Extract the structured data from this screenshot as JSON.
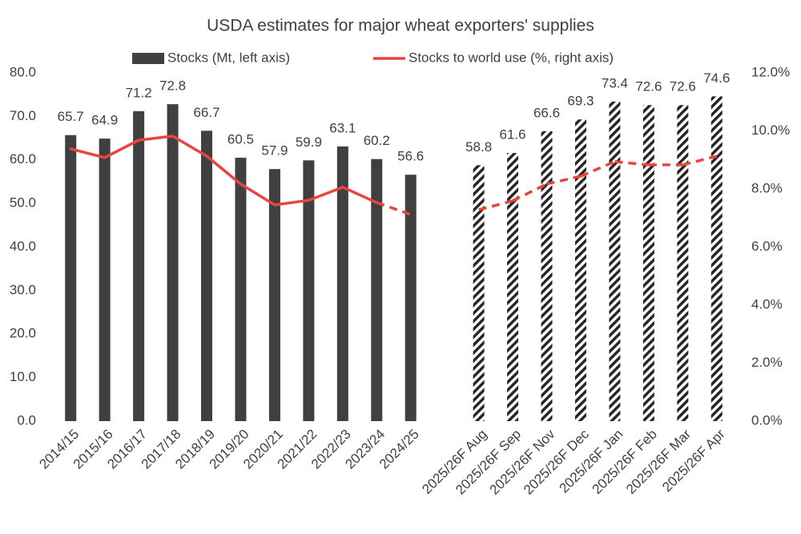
{
  "chart_data": {
    "type": "bar",
    "title": "USDA estimates for major wheat exporters' supplies",
    "categories": [
      "2014/15",
      "2015/16",
      "2016/17",
      "2017/18",
      "2018/19",
      "2019/20",
      "2020/21",
      "2021/22",
      "2022/23",
      "2023/24",
      "2024/25",
      null,
      "2025/26F Aug",
      "2025/26F Sep",
      "2025/26F Nov",
      "2025/26F Dec",
      "2025/26F Jan",
      "2025/26F Feb",
      "2025/26F Mar",
      "2025/26F Apr"
    ],
    "series": [
      {
        "name": "Stocks (Mt, left axis)",
        "type": "bar",
        "color": "#404040",
        "values": [
          65.7,
          64.9,
          71.2,
          72.8,
          66.7,
          60.5,
          57.9,
          59.9,
          63.1,
          60.2,
          56.6,
          null,
          58.8,
          61.6,
          66.6,
          69.3,
          73.4,
          72.6,
          72.6,
          74.6
        ],
        "fill_styles": [
          "solid",
          "solid",
          "solid",
          "solid",
          "solid",
          "solid",
          "solid",
          "solid",
          "solid",
          "solid",
          "solid",
          null,
          "hatched",
          "hatched",
          "hatched",
          "hatched",
          "hatched",
          "hatched",
          "hatched",
          "hatched"
        ]
      },
      {
        "name": "Stocks to world use (%, right axis)",
        "type": "line",
        "axis": "y2",
        "color": "#e8453c",
        "values": [
          9.38,
          9.08,
          9.68,
          9.82,
          9.13,
          8.17,
          7.45,
          7.61,
          8.06,
          7.53,
          7.12,
          null,
          7.28,
          7.59,
          8.17,
          8.44,
          8.94,
          8.83,
          8.83,
          9.13
        ],
        "line_styles": [
          "solid",
          "solid",
          "solid",
          "solid",
          "solid",
          "solid",
          "solid",
          "solid",
          "solid",
          "solid",
          "dashed",
          null,
          "dashed",
          "dashed",
          "dashed",
          "dashed",
          "dashed",
          "dashed",
          "dashed",
          "dashed"
        ]
      }
    ],
    "ylim": [
      0,
      80
    ],
    "yticks": [
      {
        "value": 0,
        "label": "0.0"
      },
      {
        "value": 10,
        "label": "10.0"
      },
      {
        "value": 20,
        "label": "20.0"
      },
      {
        "value": 30,
        "label": "30.0"
      },
      {
        "value": 40,
        "label": "40.0"
      },
      {
        "value": 50,
        "label": "50.0"
      },
      {
        "value": 60,
        "label": "60.0"
      },
      {
        "value": 70,
        "label": "70.0"
      },
      {
        "value": 80,
        "label": "80.0"
      }
    ],
    "y2lim": [
      0,
      12
    ],
    "y2ticks": [
      {
        "value": 0,
        "label": "0.0%"
      },
      {
        "value": 2,
        "label": "2.0%"
      },
      {
        "value": 4,
        "label": "4.0%"
      },
      {
        "value": 6,
        "label": "6.0%"
      },
      {
        "value": 8,
        "label": "8.0%"
      },
      {
        "value": 10,
        "label": "10.0%"
      },
      {
        "value": 12,
        "label": "12.0%"
      }
    ],
    "grid": false,
    "legend": "top"
  }
}
